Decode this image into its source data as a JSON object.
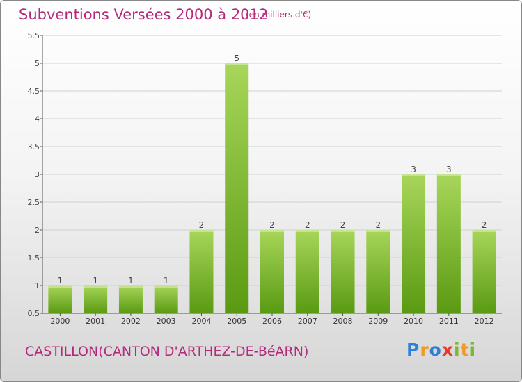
{
  "title": "Subventions Versées 2000 à 2012",
  "unit": "(en milliers d'€)",
  "commune": "CASTILLON(CANTON D'ARTHEZ-DE-BéARN)",
  "logo": {
    "text": "Proxiti",
    "letters": [
      {
        "ch": "P",
        "color": "#2e7fd6"
      },
      {
        "ch": "r",
        "color": "#f39a1e"
      },
      {
        "ch": "o",
        "color": "#2e7fd6"
      },
      {
        "ch": "x",
        "color": "#e8392e"
      },
      {
        "ch": "i",
        "color": "#7cb82f"
      },
      {
        "ch": "t",
        "color": "#f39a1e"
      },
      {
        "ch": "i",
        "color": "#7cb82f"
      }
    ]
  },
  "colors": {
    "title": "#b5287a",
    "bar_light": "#a8d65a",
    "bar_dark": "#5a9a12",
    "grid": "#d0d0d0",
    "axis": "#555555"
  },
  "chart_data": {
    "type": "bar",
    "categories": [
      "2000",
      "2001",
      "2002",
      "2003",
      "2004",
      "2005",
      "2006",
      "2007",
      "2008",
      "2009",
      "2010",
      "2011",
      "2012"
    ],
    "values": [
      1,
      1,
      1,
      1,
      2,
      5,
      2,
      2,
      2,
      2,
      3,
      3,
      2
    ],
    "data_labels": [
      "1",
      "1",
      "1",
      "1",
      "2",
      "5",
      "2",
      "2",
      "2",
      "2",
      "3",
      "3",
      "2"
    ],
    "yticks": [
      "0.5",
      "1",
      "1.5",
      "2",
      "2.5",
      "3",
      "3.5",
      "4",
      "4.5",
      "5",
      "5.5"
    ],
    "ylim": [
      0.5,
      5.5
    ],
    "grid": true,
    "xlabel": "",
    "ylabel": ""
  }
}
